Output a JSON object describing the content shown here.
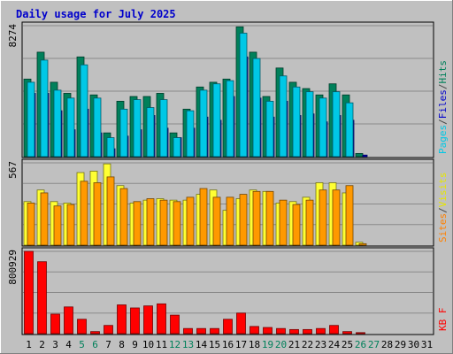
{
  "chart_data": {
    "type": "bar",
    "title": "Daily usage for July 2025",
    "categories": [
      "1",
      "2",
      "3",
      "4",
      "5",
      "6",
      "7",
      "8",
      "9",
      "10",
      "11",
      "12",
      "13",
      "14",
      "15",
      "16",
      "17",
      "18",
      "19",
      "20",
      "21",
      "22",
      "23",
      "24",
      "25",
      "26",
      "27",
      "28",
      "29",
      "30",
      "31"
    ],
    "weekend_days": [
      "5",
      "6",
      "12",
      "13",
      "19",
      "20",
      "26",
      "27"
    ],
    "panels": [
      {
        "id": "top",
        "ymax_label": "8274",
        "ylim": [
          0,
          8274
        ],
        "legend": [
          {
            "text": "Pages",
            "color": "#00c8e6"
          },
          {
            "text": "/",
            "color": "#444444"
          },
          {
            "text": "Files",
            "color": "#0000cc"
          },
          {
            "text": "/",
            "color": "#444444"
          },
          {
            "text": "Hits",
            "color": "#00805a"
          }
        ],
        "series": [
          {
            "name": "Hits",
            "color": "#00805a",
            "values": [
              4900,
              6600,
              4700,
              4000,
              6300,
              3900,
              1500,
              3500,
              3800,
              3800,
              4000,
              1500,
              3000,
              4400,
              4700,
              4900,
              8200,
              6600,
              3800,
              5600,
              4700,
              4300,
              3900,
              4600,
              3900,
              200,
              0,
              0,
              0,
              0,
              0
            ]
          },
          {
            "name": "Files",
            "color": "#0000cc",
            "values": [
              4000,
              4000,
              2900,
              1700,
              3000,
              1500,
              500,
              1300,
              1700,
              2600,
              1800,
              1200,
              1800,
              2500,
              2300,
              3800,
              6300,
              3700,
              2500,
              3500,
              2600,
              2700,
              2200,
              2600,
              2300,
              100,
              0,
              0,
              0,
              0,
              0
            ]
          },
          {
            "name": "Pages",
            "color": "#00c8e6",
            "values": [
              4700,
              6100,
              4200,
              3700,
              5800,
              3700,
              1200,
              3000,
              3600,
              3100,
              3600,
              1200,
              2900,
              4200,
              4600,
              4800,
              7800,
              6200,
              3500,
              5100,
              4400,
              4100,
              3700,
              4100,
              3400,
              0,
              0,
              0,
              0,
              0,
              0
            ]
          }
        ]
      },
      {
        "id": "middle",
        "ymax_label": "567",
        "ylim": [
          0,
          567
        ],
        "legend": [
          {
            "text": "Sites",
            "color": "#ff8000"
          },
          {
            "text": "/",
            "color": "#444444"
          },
          {
            "text": "Visits",
            "color": "#e6e600"
          }
        ],
        "series": [
          {
            "name": "Visits",
            "color": "#ffff33",
            "values": [
              300,
              380,
              300,
              290,
              500,
              510,
              560,
              410,
              290,
              310,
              320,
              310,
              310,
              350,
              380,
              240,
              320,
              380,
              370,
              290,
              300,
              330,
              430,
              430,
              360,
              20,
              0,
              0,
              0,
              0,
              0
            ]
          },
          {
            "name": "Sites",
            "color": "#ff9900",
            "values": [
              290,
              360,
              270,
              280,
              440,
              430,
              470,
              390,
              300,
              320,
              310,
              300,
              330,
              390,
              330,
              330,
              350,
              370,
              370,
              310,
              280,
              310,
              380,
              380,
              410,
              10,
              0,
              0,
              0,
              0,
              0
            ]
          }
        ]
      },
      {
        "id": "bottom",
        "ymax_label": "800929",
        "ylim": [
          0,
          800929
        ],
        "legend": [
          {
            "text": "KB F",
            "color": "#ff0000"
          }
        ],
        "series": [
          {
            "name": "KB F",
            "color": "#ff0000",
            "values": [
              800929,
              700000,
              190000,
              260000,
              140000,
              20000,
              80000,
              280000,
              250000,
              270000,
              290000,
              180000,
              50000,
              50000,
              50000,
              140000,
              200000,
              70000,
              60000,
              50000,
              40000,
              40000,
              50000,
              80000,
              20000,
              10000,
              0,
              0,
              0,
              0,
              0
            ]
          }
        ]
      }
    ]
  }
}
